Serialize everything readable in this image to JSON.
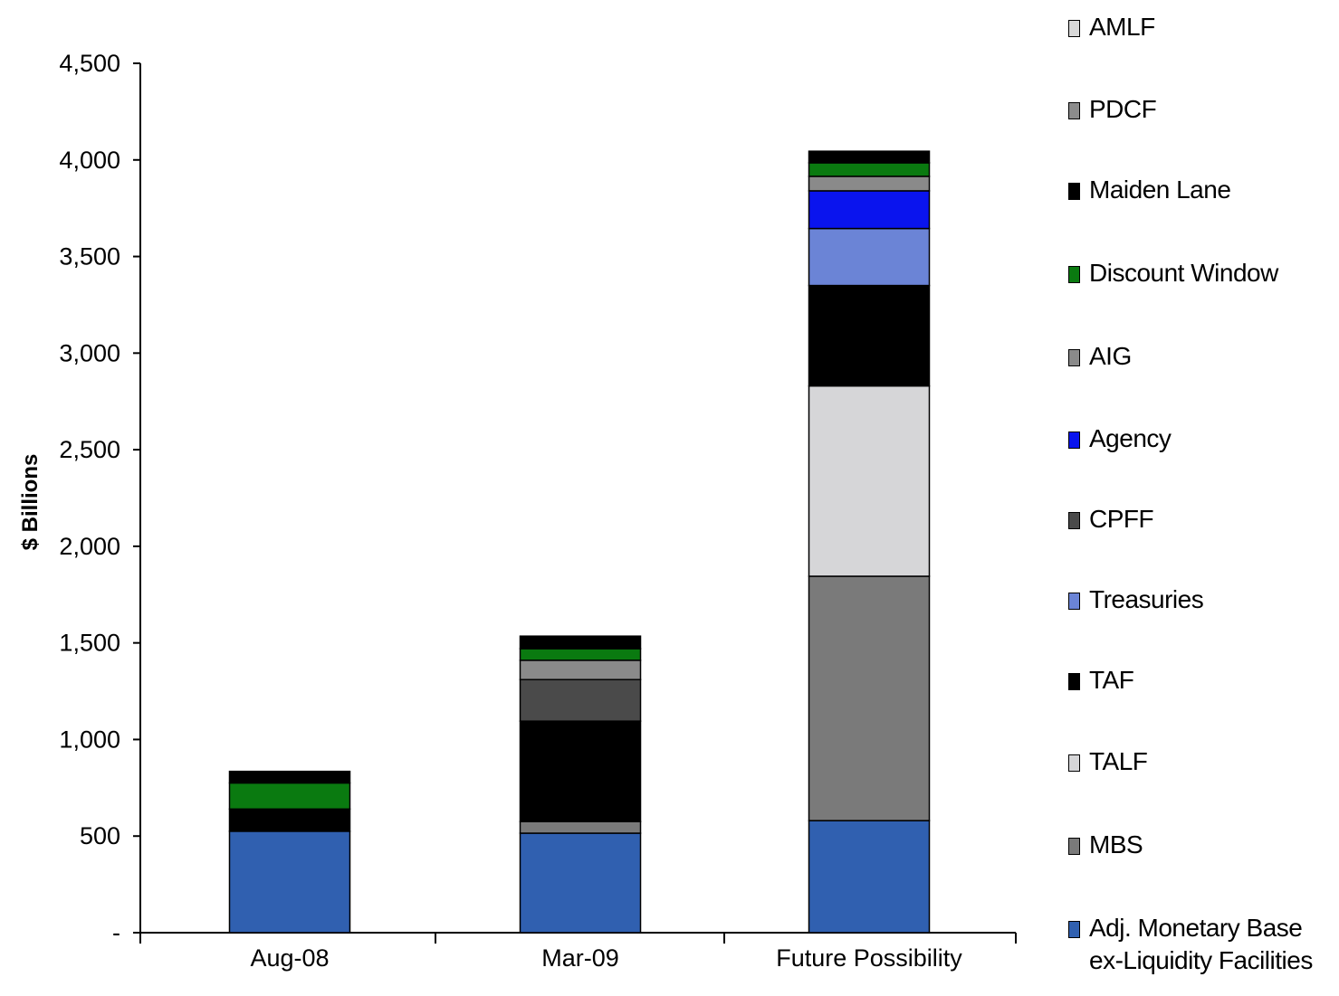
{
  "chart_data": {
    "type": "bar",
    "stacked": true,
    "title": "",
    "xlabel": "",
    "ylabel": "$ Billions",
    "ylim": [
      0,
      4500
    ],
    "y_ticks": [
      {
        "value": 0,
        "label": "-"
      },
      {
        "value": 500,
        "label": "500"
      },
      {
        "value": 1000,
        "label": "1,000"
      },
      {
        "value": 1500,
        "label": "1,500"
      },
      {
        "value": 2000,
        "label": "2,000"
      },
      {
        "value": 2500,
        "label": "2,500"
      },
      {
        "value": 3000,
        "label": "3,000"
      },
      {
        "value": 3500,
        "label": "3,500"
      },
      {
        "value": 4000,
        "label": "4,000"
      },
      {
        "value": 4500,
        "label": "4,500"
      }
    ],
    "categories": [
      "Aug-08",
      "Mar-09",
      "Future Possibility"
    ],
    "legend_position": "right",
    "grid": false,
    "series": [
      {
        "name": "Adj. Monetary Base ex-Liquidity Facilities",
        "color": "#3060b0",
        "values": [
          525,
          515,
          580
        ]
      },
      {
        "name": "MBS",
        "color": "#7a7a7a",
        "values": [
          0,
          60,
          1265
        ]
      },
      {
        "name": "TALF",
        "color": "#d6d6d8",
        "values": [
          0,
          0,
          985
        ]
      },
      {
        "name": "TAF",
        "color": "#000000",
        "values": [
          115,
          520,
          520
        ]
      },
      {
        "name": "Treasuries",
        "color": "#6b84d6",
        "values": [
          0,
          0,
          295
        ]
      },
      {
        "name": "CPFF",
        "color": "#4a4a4a",
        "values": [
          0,
          215,
          0
        ]
      },
      {
        "name": "Agency",
        "color": "#0a14ee",
        "values": [
          0,
          0,
          195
        ]
      },
      {
        "name": "AIG",
        "color": "#8a8a8a",
        "values": [
          0,
          100,
          75
        ]
      },
      {
        "name": "Discount Window",
        "color": "#0a7a10",
        "values": [
          135,
          60,
          70
        ]
      },
      {
        "name": "Maiden Lane",
        "color": "#000000",
        "values": [
          60,
          65,
          60
        ]
      },
      {
        "name": "PDCF",
        "color": "#8c8c8c",
        "values": [
          0,
          0,
          0
        ]
      },
      {
        "name": "AMLF",
        "color": "#d8d8d8",
        "values": [
          0,
          0,
          0
        ]
      }
    ],
    "legend_order": [
      "AMLF",
      "PDCF",
      "Maiden Lane",
      "Discount Window",
      "AIG",
      "Agency",
      "CPFF",
      "Treasuries",
      "TAF",
      "TALF",
      "MBS",
      "Adj. Monetary Base ex-Liquidity Facilities"
    ]
  }
}
